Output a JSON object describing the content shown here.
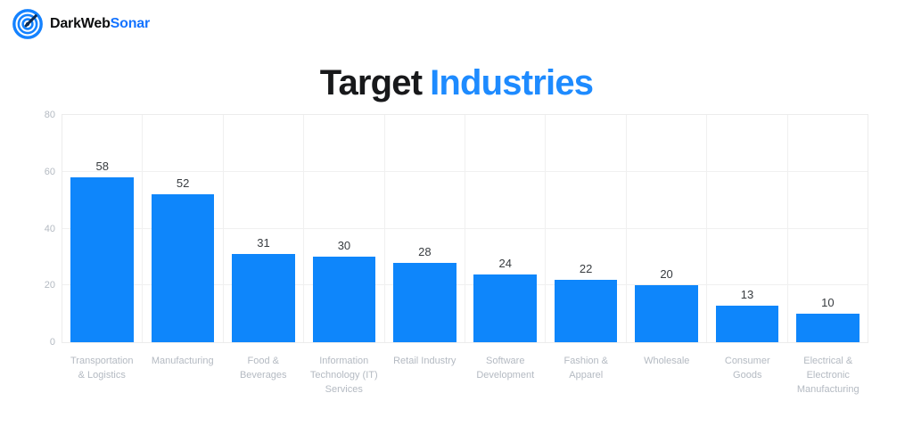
{
  "brand": {
    "name_dark": "DarkWeb",
    "name_accent": "Sonar",
    "icon": "sonar-target-icon"
  },
  "title": {
    "prefix": "Target",
    "accent": "Industries"
  },
  "colors": {
    "accent_blue": "#1e8bff",
    "bar_blue": "#0e86fb",
    "brand_blue": "#1473ff",
    "title_dark": "#18191b",
    "axis_label_gray": "#b4bac2",
    "gridline_gray": "#f0f0f0",
    "value_label_dark": "#383c40"
  },
  "chart_data": {
    "type": "bar",
    "title": "Target Industries",
    "xlabel": "",
    "ylabel": "",
    "categories": [
      "Transportation & Logistics",
      "Manufacturing",
      "Food & Beverages",
      "Information Technology (IT) Services",
      "Retail Industry",
      "Software Development",
      "Fashion & Apparel",
      "Wholesale",
      "Consumer Goods",
      "Electrical & Electronic Manufacturing"
    ],
    "values": [
      58,
      52,
      31,
      30,
      28,
      24,
      22,
      20,
      13,
      10
    ],
    "ylim": [
      0,
      80
    ],
    "yticks": [
      0,
      20,
      40,
      60,
      80
    ],
    "grid": true,
    "legend_position": "none",
    "bar_color": "#0e86fb",
    "value_labels_shown": true
  }
}
